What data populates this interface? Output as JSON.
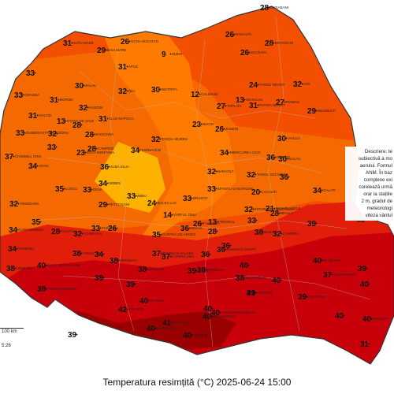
{
  "caption": "Temperatura resimțită (°C) 2025-06-24 15:00",
  "colors": {
    "t24": "#ff9a00",
    "t27": "#ff7a00",
    "t30": "#f56a00",
    "t33": "#f24f00",
    "t36": "#e01e0a",
    "t39": "#c8000a",
    "t42": "#9a0000",
    "cool": "#ffb100",
    "sea": "#ffffff"
  },
  "description_lines": [
    "Descriere: te",
    "subiectivă a mo",
    "aerului. Formul",
    "ANM. În baz",
    "complexe exi",
    "corelează urmă",
    "orar la stațiile",
    "2 m, gradul de",
    "meteorologi",
    "viteza vântul"
  ],
  "scale": {
    "label": "100 km",
    "time": "5:26"
  },
  "stations": [
    {
      "v": "28",
      "n": "DARABANI"
    },
    {
      "v": "26",
      "n": "RADAUTI"
    },
    {
      "v": "28",
      "n": "BOTOSANI"
    },
    {
      "v": "26",
      "n": "SUCEAVA"
    },
    {
      "v": "31",
      "n": "SATU MARE"
    },
    {
      "v": "29",
      "n": "BAIA MARE"
    },
    {
      "v": "26",
      "n": "OCNA SUGATAG"
    },
    {
      "v": "9",
      "n": "ISZER"
    },
    {
      "v": "31",
      "n": "APUS"
    },
    {
      "v": "33",
      "n": ""
    },
    {
      "v": "30",
      "n": "ZALAU"
    },
    {
      "v": "32",
      "n": "DEJ"
    },
    {
      "v": "30",
      "n": "BISTRITA"
    },
    {
      "v": "24",
      "n": "TARGU NEAMT"
    },
    {
      "v": "32",
      "n": "IASI"
    },
    {
      "v": "33",
      "n": "ORADEA"
    },
    {
      "v": "31",
      "n": "BOROD"
    },
    {
      "v": "32",
      "n": "HUEDIN"
    },
    {
      "v": "12",
      "n": "CALIMANI"
    },
    {
      "v": "27",
      "n": "TOPLITA"
    },
    {
      "v": "13",
      "n": "CEAHLAU"
    },
    {
      "v": "31",
      "n": "PIATRA NEAMT"
    },
    {
      "v": "27",
      "n": "ROMAN"
    },
    {
      "v": "29",
      "n": "NEGRESTI"
    },
    {
      "v": "31",
      "n": "HOLOD"
    },
    {
      "v": "13",
      "n": "STANA DE VALE"
    },
    {
      "v": "28",
      "n": ""
    },
    {
      "v": "31",
      "n": "CLUJ-NAPOCA"
    },
    {
      "v": "23",
      "n": "BUCIN"
    },
    {
      "v": "26",
      "n": "JOSENI"
    },
    {
      "v": "30",
      "n": "VASLUI"
    },
    {
      "v": "33",
      "n": "DUMBRAVITA DE CODRU"
    },
    {
      "v": "32",
      "n": ""
    },
    {
      "v": "28",
      "n": "BAISOARA"
    },
    {
      "v": "32",
      "n": "TARGU MURES"
    },
    {
      "v": "33",
      "n": ""
    },
    {
      "v": "30",
      "n": "BACAU"
    },
    {
      "v": "37",
      "n": "CHISINEU CRIS"
    },
    {
      "v": "23",
      "n": "BOTA MONTANA"
    },
    {
      "v": "34",
      "n": "TARNAVENI"
    },
    {
      "v": "28",
      "n": "CAMPENI"
    },
    {
      "v": "34",
      "n": "MIERCUREA CIUC"
    },
    {
      "v": "36",
      "n": "ONESTI"
    },
    {
      "v": "34",
      "n": "ARAD"
    },
    {
      "v": "36",
      "n": "ALBA IULIA"
    },
    {
      "v": "34",
      "n": "SEBES"
    },
    {
      "v": "32",
      "n": "BARAOLT"
    },
    {
      "v": "32",
      "n": "TARGU SECUIESC"
    },
    {
      "v": "36",
      "n": ""
    },
    {
      "v": "35",
      "n": "LUGOJ"
    },
    {
      "v": "33",
      "n": "DEVA"
    },
    {
      "v": "33",
      "n": "SIBIU"
    },
    {
      "v": "33",
      "n": "SFANTU GHEORGHE"
    },
    {
      "v": "20",
      "n": "LACAUTI"
    },
    {
      "v": "34",
      "n": "GALATI"
    },
    {
      "v": "32",
      "n": "TIMISOARA"
    },
    {
      "v": "29",
      "n": "PETROSANI"
    },
    {
      "v": "24",
      "n": "BALEA LAC"
    },
    {
      "v": "33",
      "n": "BRASOV"
    },
    {
      "v": "32",
      "n": "INTORSURA BUZAULUI"
    },
    {
      "v": "21",
      "n": "PATARLAGELE"
    },
    {
      "v": "28",
      "n": "BRAILA"
    },
    {
      "v": "34",
      "n": "CARANSEBES"
    },
    {
      "v": "35",
      "n": ""
    },
    {
      "v": "33",
      "n": "PARANG"
    },
    {
      "v": "26",
      "n": ""
    },
    {
      "v": "14",
      "n": "VARFUL OMU"
    },
    {
      "v": "26",
      "n": "FUNDATA"
    },
    {
      "v": "28",
      "n": ""
    },
    {
      "v": "38",
      "n": "BUZAU"
    },
    {
      "v": "40",
      "n": "TULCEA"
    },
    {
      "v": "39",
      "n": ""
    },
    {
      "v": "34",
      "n": "SEMENIC"
    },
    {
      "v": "28",
      "n": "CUNTU"
    },
    {
      "v": "32",
      "n": "VOINEASA"
    },
    {
      "v": "35",
      "n": "CURTEA DE ARGES"
    },
    {
      "v": "36",
      "n": "SINAIA"
    },
    {
      "v": "13",
      "n": "PREDEAL"
    },
    {
      "v": "33",
      "n": ""
    },
    {
      "v": "32",
      "n": "CAMPINA"
    },
    {
      "v": "36",
      "n": "RAMNICU SARAT"
    },
    {
      "v": "36",
      "n": ""
    },
    {
      "v": "36",
      "n": ""
    },
    {
      "v": "38",
      "n": "OROLDIA"
    },
    {
      "v": "40",
      "n": "BAILE HERCULANE"
    },
    {
      "v": "38",
      "n": "TURNU SEVERIN"
    },
    {
      "v": "38",
      "n": "TARGU JIU"
    },
    {
      "v": "34",
      "n": ""
    },
    {
      "v": "37",
      "n": "RAMNICU VALCEA"
    },
    {
      "v": "37",
      "n": "CAMPULUNG"
    },
    {
      "v": "38",
      "n": "PLOIESTI"
    },
    {
      "v": "40",
      "n": ""
    },
    {
      "v": "40",
      "n": "SLOBOZIA"
    },
    {
      "v": "39",
      "n": ""
    },
    {
      "v": "38",
      "n": "DROBETA"
    },
    {
      "v": "39",
      "n": ""
    },
    {
      "v": "38",
      "n": "CRAIOVA"
    },
    {
      "v": "39",
      "n": "PITESTI"
    },
    {
      "v": "38",
      "n": "BUCURESTI"
    },
    {
      "v": "40",
      "n": ""
    },
    {
      "v": "41",
      "n": ""
    },
    {
      "v": "39",
      "n": "CALARASI"
    },
    {
      "v": "37",
      "n": "CONSTANTA"
    },
    {
      "v": "40",
      "n": ""
    },
    {
      "v": "39",
      "n": ""
    },
    {
      "v": "40",
      "n": "SLATINA"
    },
    {
      "v": "40",
      "n": "ALEXANDRIA"
    },
    {
      "v": "40",
      "n": ""
    },
    {
      "v": "39",
      "n": "GIURGIU"
    },
    {
      "v": "40",
      "n": ""
    },
    {
      "v": "40",
      "n": "BAILESTI"
    },
    {
      "v": "42",
      "n": "CALAFAT"
    },
    {
      "v": "39",
      "n": ""
    },
    {
      "v": "41",
      "n": "CARACAL"
    },
    {
      "v": "40",
      "n": "TURNU MAGURELE"
    },
    {
      "v": "40",
      "n": "ZIMNICEA"
    },
    {
      "v": "40",
      "n": "MANGALIA"
    },
    {
      "v": "31",
      "n": ""
    }
  ]
}
